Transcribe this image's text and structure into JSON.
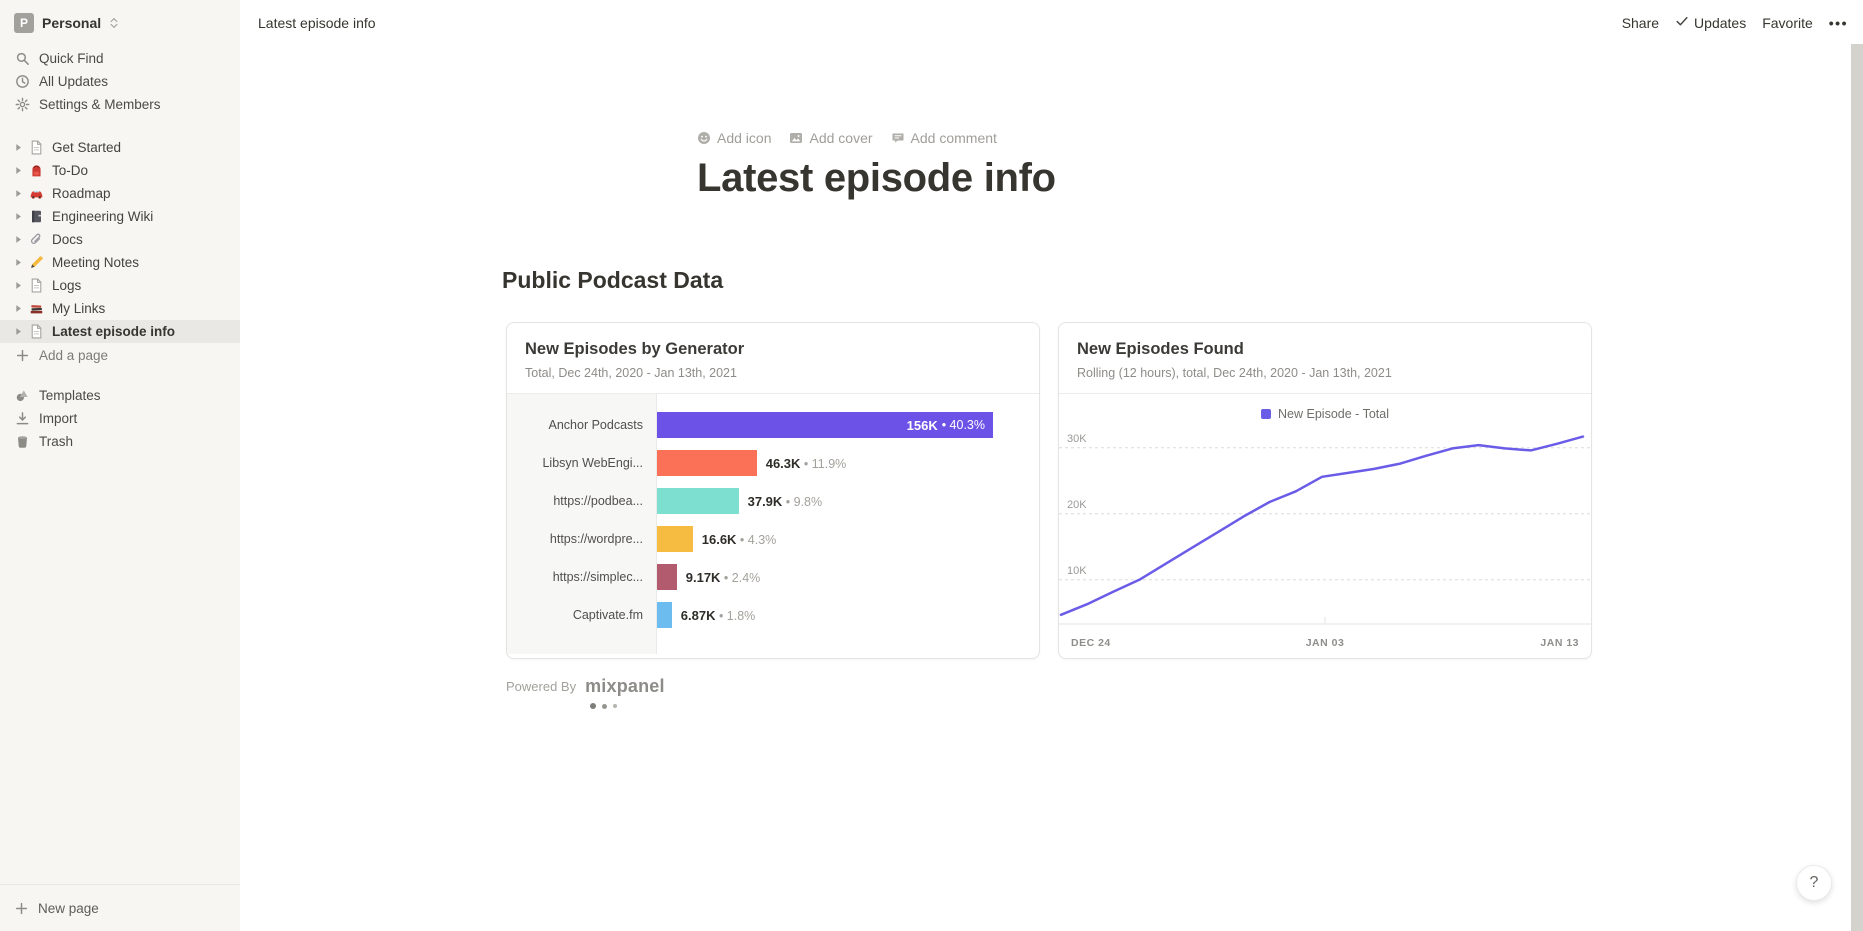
{
  "workspace": {
    "initial": "P",
    "name": "Personal"
  },
  "sidebar": {
    "top_items": [
      {
        "icon": "search-icon",
        "label": "Quick Find"
      },
      {
        "icon": "clock-icon",
        "label": "All Updates"
      },
      {
        "icon": "gear-icon",
        "label": "Settings & Members"
      }
    ],
    "pages": [
      {
        "icon": "page-icon",
        "label": "Get Started",
        "selected": false
      },
      {
        "icon": "backpack-icon",
        "label": "To-Do",
        "selected": false
      },
      {
        "icon": "car-icon",
        "label": "Roadmap",
        "selected": false
      },
      {
        "icon": "notebook-icon",
        "label": "Engineering Wiki",
        "selected": false
      },
      {
        "icon": "paperclip-icon",
        "label": "Docs",
        "selected": false
      },
      {
        "icon": "pencil-icon",
        "label": "Meeting Notes",
        "selected": false
      },
      {
        "icon": "page-icon",
        "label": "Logs",
        "selected": false
      },
      {
        "icon": "books-icon",
        "label": "My Links",
        "selected": false
      },
      {
        "icon": "page-icon",
        "label": "Latest episode info",
        "selected": true
      }
    ],
    "add_page_label": "Add a page",
    "bottom_items": [
      {
        "icon": "templates-icon",
        "label": "Templates"
      },
      {
        "icon": "import-icon",
        "label": "Import"
      },
      {
        "icon": "trash-icon",
        "label": "Trash"
      }
    ],
    "new_page_label": "New page"
  },
  "topbar": {
    "breadcrumb": "Latest episode info",
    "share_label": "Share",
    "updates_label": "Updates",
    "favorite_label": "Favorite",
    "more_label": "•••"
  },
  "page": {
    "add_icon_label": "Add icon",
    "add_cover_label": "Add cover",
    "add_comment_label": "Add comment",
    "title": "Latest episode info",
    "section_heading": "Public Podcast Data",
    "powered_by_label": "Powered By",
    "provider_label": "mixpanel"
  },
  "chart_data": [
    {
      "type": "bar",
      "orientation": "horizontal",
      "title": "New Episodes by Generator",
      "subtitle": "Total, Dec 24th, 2020 - Jan 13th, 2021",
      "categories": [
        "Anchor Podcasts",
        "Libsyn WebEngi...",
        "https://podbea...",
        "https://wordpre...",
        "https://simplec...",
        "Captivate.fm"
      ],
      "values": [
        156000,
        46300,
        37900,
        16600,
        9170,
        6870
      ],
      "value_labels": [
        "156K",
        "46.3K",
        "37.9K",
        "16.6K",
        "9.17K",
        "6.87K"
      ],
      "pct_labels": [
        "40.3%",
        "11.9%",
        "9.8%",
        "4.3%",
        "2.4%",
        "1.8%"
      ],
      "colors": [
        "#6c52e6",
        "#fb7157",
        "#7cdfd0",
        "#f6bc41",
        "#b25b6e",
        "#6cbcf0"
      ],
      "separator": "•",
      "grid": false,
      "legend_position": "none"
    },
    {
      "type": "line",
      "title": "New Episodes Found",
      "subtitle": "Rolling (12 hours), total, Dec 24th, 2020 - Jan 13th, 2021",
      "legend": [
        {
          "label": "New Episode - Total",
          "color": "#6b5ce8"
        }
      ],
      "legend_position": "top-center",
      "x_tick_labels": [
        "DEC 24",
        "JAN 03",
        "JAN 13"
      ],
      "y_tick_labels": [
        "10K",
        "20K",
        "30K"
      ],
      "y_ticks": [
        10000,
        20000,
        30000
      ],
      "ylim": [
        3300,
        33300
      ],
      "grid": "dashed-horizontal",
      "series": [
        {
          "name": "New Episode - Total",
          "color": "#6b5ce8",
          "values": [
            4700,
            6300,
            8200,
            10000,
            12400,
            14800,
            17200,
            19600,
            21800,
            23400,
            25600,
            26200,
            26800,
            27600,
            28800,
            29900,
            30400,
            29900,
            29600,
            30600,
            31700
          ]
        }
      ]
    }
  ],
  "help_label": "?"
}
